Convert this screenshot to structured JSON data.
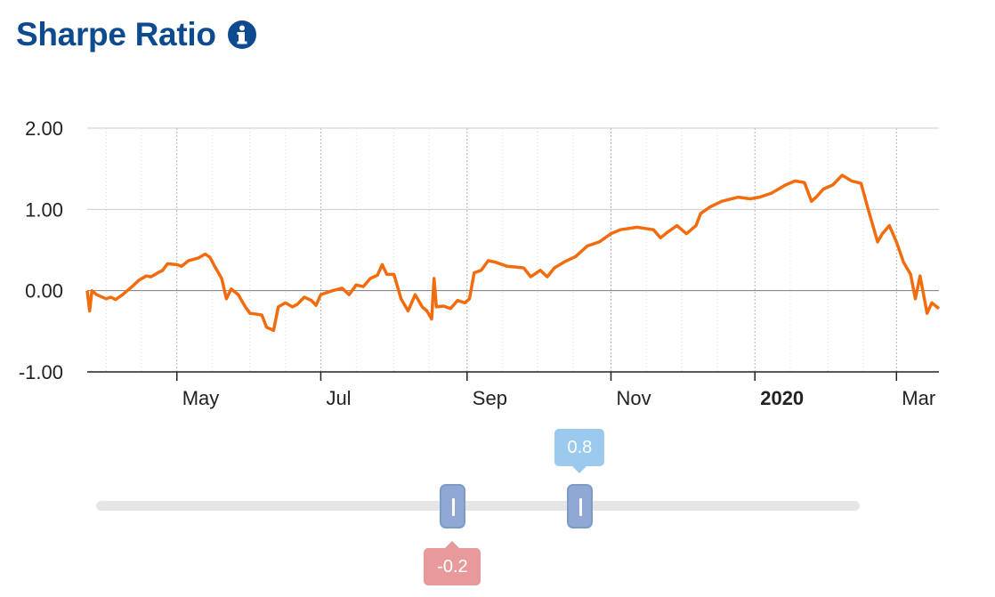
{
  "header": {
    "title": "Sharpe Ratio",
    "info_icon": "info-circle-icon"
  },
  "colors": {
    "title": "#0d4a8f",
    "line": "#f26c0d",
    "handle": "#8fa9d4",
    "tooltip_high": "#9ccaee",
    "tooltip_low": "#e89a9a",
    "track": "#e6e6e6"
  },
  "chart_data": {
    "type": "line",
    "title": "Sharpe Ratio",
    "xlabel": "",
    "ylabel": "",
    "ylim": [
      -1.0,
      2.0
    ],
    "y_ticks": [
      "2.00",
      "1.00",
      "0.00",
      "-1.00"
    ],
    "x_ticks": [
      "May",
      "Jul",
      "Sep",
      "Nov",
      "2020",
      "Mar"
    ],
    "x_tick_dates": [
      "2019-05-01",
      "2019-07-01",
      "2019-09-01",
      "2019-11-01",
      "2020-01-01",
      "2020-03-01"
    ],
    "xlim": [
      "2019-03-24",
      "2020-03-19"
    ],
    "grid": true,
    "legend": "none",
    "series": [
      {
        "values": [
          [
            "2019-03-24",
            0.0
          ],
          [
            "2019-03-25",
            -0.25
          ],
          [
            "2019-03-26",
            0.0
          ],
          [
            "2019-03-28",
            -0.05
          ],
          [
            "2019-04-01",
            -0.1
          ],
          [
            "2019-04-03",
            -0.08
          ],
          [
            "2019-04-05",
            -0.11
          ],
          [
            "2019-04-08",
            -0.05
          ],
          [
            "2019-04-12",
            0.05
          ],
          [
            "2019-04-15",
            0.13
          ],
          [
            "2019-04-18",
            0.18
          ],
          [
            "2019-04-20",
            0.17
          ],
          [
            "2019-04-23",
            0.22
          ],
          [
            "2019-04-25",
            0.25
          ],
          [
            "2019-04-27",
            0.33
          ],
          [
            "2019-05-01",
            0.32
          ],
          [
            "2019-05-03",
            0.3
          ],
          [
            "2019-05-06",
            0.37
          ],
          [
            "2019-05-10",
            0.4
          ],
          [
            "2019-05-13",
            0.45
          ],
          [
            "2019-05-15",
            0.41
          ],
          [
            "2019-05-17",
            0.3
          ],
          [
            "2019-05-20",
            0.15
          ],
          [
            "2019-05-22",
            -0.1
          ],
          [
            "2019-05-24",
            0.02
          ],
          [
            "2019-05-27",
            -0.05
          ],
          [
            "2019-05-30",
            -0.2
          ],
          [
            "2019-06-01",
            -0.28
          ],
          [
            "2019-06-04",
            -0.29
          ],
          [
            "2019-06-06",
            -0.3
          ],
          [
            "2019-06-08",
            -0.45
          ],
          [
            "2019-06-11",
            -0.49
          ],
          [
            "2019-06-13",
            -0.2
          ],
          [
            "2019-06-16",
            -0.15
          ],
          [
            "2019-06-19",
            -0.2
          ],
          [
            "2019-06-21",
            -0.17
          ],
          [
            "2019-06-24",
            -0.08
          ],
          [
            "2019-06-27",
            -0.12
          ],
          [
            "2019-06-29",
            -0.18
          ],
          [
            "2019-07-01",
            -0.05
          ],
          [
            "2019-07-03",
            -0.03
          ],
          [
            "2019-07-06",
            0.0
          ],
          [
            "2019-07-10",
            0.03
          ],
          [
            "2019-07-13",
            -0.05
          ],
          [
            "2019-07-16",
            0.07
          ],
          [
            "2019-07-19",
            0.05
          ],
          [
            "2019-07-22",
            0.15
          ],
          [
            "2019-07-25",
            0.19
          ],
          [
            "2019-07-27",
            0.32
          ],
          [
            "2019-07-29",
            0.2
          ],
          [
            "2019-08-01",
            0.2
          ],
          [
            "2019-08-04",
            -0.1
          ],
          [
            "2019-08-07",
            -0.25
          ],
          [
            "2019-08-10",
            -0.05
          ],
          [
            "2019-08-13",
            -0.2
          ],
          [
            "2019-08-15",
            -0.25
          ],
          [
            "2019-08-17",
            -0.35
          ],
          [
            "2019-08-18",
            0.15
          ],
          [
            "2019-08-19",
            -0.2
          ],
          [
            "2019-08-22",
            -0.19
          ],
          [
            "2019-08-25",
            -0.22
          ],
          [
            "2019-08-28",
            -0.12
          ],
          [
            "2019-08-31",
            -0.15
          ],
          [
            "2019-09-02",
            -0.1
          ],
          [
            "2019-09-04",
            0.22
          ],
          [
            "2019-09-07",
            0.25
          ],
          [
            "2019-09-10",
            0.37
          ],
          [
            "2019-09-13",
            0.35
          ],
          [
            "2019-09-18",
            0.3
          ],
          [
            "2019-09-22",
            0.29
          ],
          [
            "2019-09-25",
            0.28
          ],
          [
            "2019-09-28",
            0.17
          ],
          [
            "2019-10-02",
            0.25
          ],
          [
            "2019-10-05",
            0.17
          ],
          [
            "2019-10-08",
            0.28
          ],
          [
            "2019-10-12",
            0.35
          ],
          [
            "2019-10-17",
            0.42
          ],
          [
            "2019-10-22",
            0.55
          ],
          [
            "2019-10-27",
            0.6
          ],
          [
            "2019-11-01",
            0.7
          ],
          [
            "2019-11-05",
            0.75
          ],
          [
            "2019-11-12",
            0.78
          ],
          [
            "2019-11-19",
            0.75
          ],
          [
            "2019-11-22",
            0.65
          ],
          [
            "2019-11-25",
            0.72
          ],
          [
            "2019-11-29",
            0.8
          ],
          [
            "2019-12-03",
            0.7
          ],
          [
            "2019-12-07",
            0.8
          ],
          [
            "2019-12-09",
            0.95
          ],
          [
            "2019-12-13",
            1.03
          ],
          [
            "2019-12-18",
            1.1
          ],
          [
            "2019-12-25",
            1.15
          ],
          [
            "2019-12-30",
            1.13
          ],
          [
            "2020-01-03",
            1.15
          ],
          [
            "2020-01-08",
            1.2
          ],
          [
            "2020-01-14",
            1.3
          ],
          [
            "2020-01-18",
            1.35
          ],
          [
            "2020-01-22",
            1.33
          ],
          [
            "2020-01-25",
            1.1
          ],
          [
            "2020-01-27",
            1.15
          ],
          [
            "2020-01-30",
            1.25
          ],
          [
            "2020-02-03",
            1.3
          ],
          [
            "2020-02-07",
            1.42
          ],
          [
            "2020-02-11",
            1.35
          ],
          [
            "2020-02-15",
            1.32
          ],
          [
            "2020-02-18",
            1.0
          ],
          [
            "2020-02-22",
            0.6
          ],
          [
            "2020-02-24",
            0.7
          ],
          [
            "2020-02-27",
            0.8
          ],
          [
            "2020-03-01",
            0.6
          ],
          [
            "2020-03-04",
            0.35
          ],
          [
            "2020-03-07",
            0.2
          ],
          [
            "2020-03-09",
            -0.1
          ],
          [
            "2020-03-11",
            0.18
          ],
          [
            "2020-03-14",
            -0.28
          ],
          [
            "2020-03-16",
            -0.15
          ],
          [
            "2020-03-19",
            -0.22
          ]
        ]
      }
    ]
  },
  "slider": {
    "low_value": "-0.2",
    "high_value": "0.8",
    "min": -3,
    "max": 3,
    "low": -0.2,
    "high": 0.8
  }
}
